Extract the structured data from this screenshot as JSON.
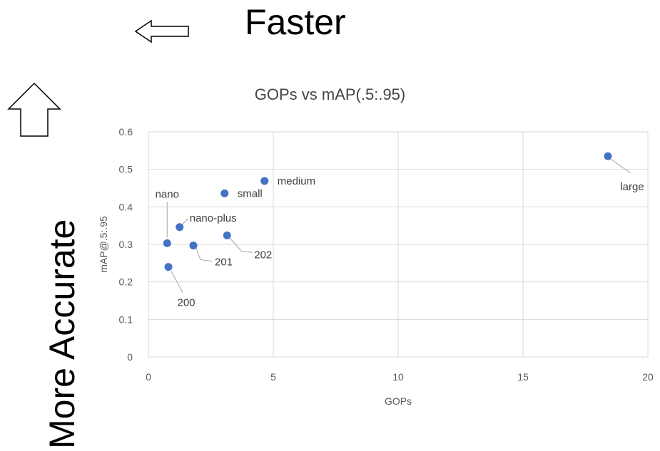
{
  "headline_speed": "Faster",
  "headline_accuracy": "More Accurate",
  "chart_data": {
    "type": "scatter",
    "title": "GOPs vs mAP(.5:.95)",
    "xlabel": "GOPs",
    "ylabel": "mAP@.5:.95",
    "xlim": [
      0,
      20
    ],
    "ylim": [
      0,
      0.6
    ],
    "xticks": [
      0,
      5,
      10,
      15,
      20
    ],
    "yticks": [
      0,
      0.1,
      0.2,
      0.3,
      0.4,
      0.5,
      0.6
    ],
    "grid": true,
    "marker_color": "#4472C4",
    "points": [
      {
        "label": "nano",
        "x": 0.75,
        "y": 0.303
      },
      {
        "label": "200",
        "x": 0.8,
        "y": 0.24
      },
      {
        "label": "nano-plus",
        "x": 1.25,
        "y": 0.346
      },
      {
        "label": "201",
        "x": 1.8,
        "y": 0.297
      },
      {
        "label": "small",
        "x": 3.05,
        "y": 0.436
      },
      {
        "label": "202",
        "x": 3.15,
        "y": 0.324
      },
      {
        "label": "medium",
        "x": 4.65,
        "y": 0.469
      },
      {
        "label": "large",
        "x": 18.4,
        "y": 0.535
      }
    ]
  }
}
